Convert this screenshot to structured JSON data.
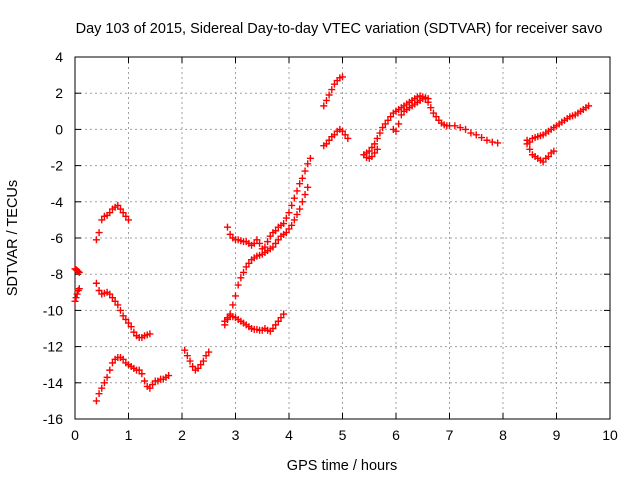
{
  "chart_data": {
    "type": "scatter",
    "title": "Day 103 of 2015, Sidereal Day-to-day VTEC variation (SDTVAR) for receiver savo",
    "xlabel": "GPS time / hours",
    "ylabel": "SDTVAR / TECUs",
    "xlim": [
      0,
      10
    ],
    "ylim": [
      -16,
      4
    ],
    "xticks": [
      "0",
      "1",
      "2",
      "3",
      "4",
      "5",
      "6",
      "7",
      "8",
      "9",
      "10"
    ],
    "yticks": [
      "-16",
      "-14",
      "-12",
      "-10",
      "-8",
      "-6",
      "-4",
      "-2",
      "0",
      "2",
      "4"
    ],
    "grid": true,
    "marker": "plus",
    "color": "#ff0000",
    "series": [
      {
        "x": [
          0.0,
          0.02,
          0.04,
          0.06,
          0.08
        ],
        "y": [
          -7.7,
          -7.75,
          -7.8,
          -7.85,
          -7.9
        ]
      },
      {
        "x": [
          0.0,
          0.02,
          0.04,
          0.06,
          0.08
        ],
        "y": [
          -9.5,
          -9.3,
          -9.1,
          -8.9,
          -8.8
        ]
      },
      {
        "x": [
          0.4,
          0.45,
          0.5,
          0.55,
          0.6,
          0.65,
          0.7,
          0.75,
          0.8,
          0.85,
          0.9,
          0.95,
          1.0
        ],
        "y": [
          -6.1,
          -5.7,
          -5.0,
          -4.8,
          -4.75,
          -4.6,
          -4.4,
          -4.3,
          -4.2,
          -4.4,
          -4.6,
          -4.8,
          -5.0
        ]
      },
      {
        "x": [
          0.4,
          0.45,
          0.5,
          0.55,
          0.6,
          0.65,
          0.7,
          0.75,
          0.8,
          0.85,
          0.9,
          0.95,
          1.0,
          1.05,
          1.1,
          1.15,
          1.2,
          1.25,
          1.3,
          1.35,
          1.4
        ],
        "y": [
          -8.5,
          -8.9,
          -9.1,
          -9.05,
          -9.0,
          -9.1,
          -9.3,
          -9.5,
          -9.7,
          -10.0,
          -10.3,
          -10.5,
          -10.7,
          -10.9,
          -11.2,
          -11.4,
          -11.5,
          -11.5,
          -11.4,
          -11.35,
          -11.3
        ]
      },
      {
        "x": [
          0.4,
          0.45,
          0.5,
          0.55,
          0.6,
          0.65,
          0.7,
          0.75,
          0.8,
          0.85,
          0.9,
          0.95,
          1.0,
          1.05,
          1.1,
          1.15,
          1.2,
          1.25,
          1.3,
          1.35,
          1.4,
          1.45,
          1.5,
          1.55,
          1.6,
          1.65,
          1.7,
          1.75
        ],
        "y": [
          -15.0,
          -14.6,
          -14.3,
          -14.0,
          -13.7,
          -13.3,
          -12.9,
          -12.7,
          -12.6,
          -12.6,
          -12.7,
          -12.9,
          -13.0,
          -13.1,
          -13.2,
          -13.3,
          -13.3,
          -13.5,
          -13.9,
          -14.2,
          -14.3,
          -14.1,
          -13.9,
          -13.9,
          -13.8,
          -13.8,
          -13.7,
          -13.6
        ]
      },
      {
        "x": [
          2.05,
          2.1,
          2.15,
          2.2,
          2.25,
          2.3,
          2.35,
          2.4,
          2.45,
          2.5
        ],
        "y": [
          -12.2,
          -12.5,
          -12.8,
          -13.1,
          -13.3,
          -13.2,
          -13.0,
          -12.8,
          -12.5,
          -12.3
        ]
      },
      {
        "x": [
          2.8,
          2.85,
          2.9,
          2.95,
          3.0,
          3.05,
          3.1,
          3.15,
          3.2,
          3.25,
          3.3,
          3.35,
          3.4,
          3.45,
          3.5,
          3.55,
          3.6,
          3.65,
          3.7,
          3.75,
          3.8,
          3.85,
          3.9
        ],
        "y": [
          -10.6,
          -10.4,
          -10.3,
          -10.35,
          -10.4,
          -10.5,
          -10.6,
          -10.7,
          -10.8,
          -10.9,
          -11.0,
          -11.05,
          -11.05,
          -11.1,
          -11.1,
          -11.0,
          -11.1,
          -11.15,
          -11.0,
          -10.8,
          -10.6,
          -10.4,
          -10.2
        ]
      },
      {
        "x": [
          2.8,
          2.85,
          2.9,
          2.95,
          3.0,
          3.05,
          3.1,
          3.15,
          3.2,
          3.25,
          3.3,
          3.35,
          3.4,
          3.45,
          3.5,
          3.55,
          3.6,
          3.65,
          3.7,
          3.75,
          3.8,
          3.85,
          3.9,
          3.95,
          4.0,
          4.05,
          4.1,
          4.15,
          4.2,
          4.25,
          4.3,
          4.35
        ],
        "y": [
          -10.8,
          -10.5,
          -10.2,
          -9.7,
          -9.2,
          -8.6,
          -8.2,
          -7.9,
          -7.6,
          -7.4,
          -7.2,
          -7.1,
          -7.0,
          -6.95,
          -6.9,
          -6.8,
          -6.7,
          -6.6,
          -6.5,
          -6.3,
          -6.1,
          -5.9,
          -5.8,
          -5.7,
          -5.5,
          -5.3,
          -5.0,
          -4.7,
          -4.4,
          -4.0,
          -3.6,
          -3.2
        ]
      },
      {
        "x": [
          2.85,
          2.9,
          2.95,
          3.0,
          3.05,
          3.1,
          3.15,
          3.2,
          3.25,
          3.3,
          3.35,
          3.4,
          3.45,
          3.5,
          3.55,
          3.6,
          3.65,
          3.7,
          3.75,
          3.8,
          3.85,
          3.9,
          3.95,
          4.0,
          4.05,
          4.1,
          4.15,
          4.2,
          4.25,
          4.3,
          4.35,
          4.4
        ],
        "y": [
          -5.4,
          -5.8,
          -6.0,
          -6.1,
          -6.1,
          -6.15,
          -6.2,
          -6.2,
          -6.3,
          -6.4,
          -6.3,
          -6.1,
          -6.3,
          -6.6,
          -6.5,
          -6.2,
          -5.9,
          -5.7,
          -5.6,
          -5.4,
          -5.3,
          -5.2,
          -4.9,
          -4.6,
          -4.2,
          -3.8,
          -3.4,
          -3.0,
          -2.7,
          -2.3,
          -1.9,
          -1.6
        ]
      },
      {
        "x": [
          4.65,
          4.7,
          4.75,
          4.8,
          4.85,
          4.9,
          4.95,
          5.0
        ],
        "y": [
          1.3,
          1.6,
          1.9,
          2.2,
          2.5,
          2.7,
          2.85,
          2.9
        ]
      },
      {
        "x": [
          4.65,
          4.7,
          4.75,
          4.8,
          4.85,
          4.9,
          4.95,
          5.0,
          5.05,
          5.1
        ],
        "y": [
          -0.9,
          -0.8,
          -0.6,
          -0.4,
          -0.3,
          -0.1,
          0.0,
          -0.1,
          -0.3,
          -0.5
        ]
      },
      {
        "x": [
          5.4,
          5.45,
          5.5,
          5.55,
          5.6,
          5.65,
          5.7,
          5.75,
          5.8,
          5.85,
          5.9,
          5.95,
          6.0,
          6.05,
          6.1,
          6.15,
          6.2,
          6.25,
          6.3,
          6.35,
          6.4,
          6.45,
          6.5,
          6.55,
          6.6,
          6.65,
          6.7,
          6.75,
          6.8,
          6.85,
          6.9,
          6.95,
          7.0,
          7.1,
          7.2,
          7.3,
          7.4,
          7.5,
          7.6,
          7.7,
          7.8,
          7.9
        ],
        "y": [
          -1.4,
          -1.3,
          -1.2,
          -1.0,
          -0.8,
          -0.5,
          -0.2,
          0.1,
          0.3,
          0.5,
          0.7,
          0.9,
          1.0,
          1.1,
          1.2,
          1.3,
          1.4,
          1.5,
          1.6,
          1.7,
          1.8,
          1.85,
          1.8,
          1.7,
          1.5,
          1.2,
          0.9,
          0.7,
          0.5,
          0.35,
          0.25,
          0.2,
          0.2,
          0.2,
          0.1,
          0.0,
          -0.2,
          -0.3,
          -0.45,
          -0.6,
          -0.7,
          -0.75
        ]
      },
      {
        "x": [
          5.4,
          5.45,
          5.5,
          5.55,
          5.6,
          5.65
        ],
        "y": [
          -1.4,
          -1.55,
          -1.6,
          -1.5,
          -1.3,
          -1.1
        ]
      },
      {
        "x": [
          5.95,
          6.0,
          6.05,
          6.1,
          6.15,
          6.2,
          6.25,
          6.3,
          6.35,
          6.4,
          6.45,
          6.5,
          6.55,
          6.6
        ],
        "y": [
          0.0,
          -0.1,
          0.3,
          0.8,
          1.0,
          1.1,
          1.2,
          1.3,
          1.4,
          1.5,
          1.6,
          1.7,
          1.75,
          1.7
        ]
      },
      {
        "x": [
          8.45,
          8.5,
          8.55,
          8.6,
          8.65,
          8.7,
          8.75,
          8.8,
          8.85,
          8.9,
          8.95,
          9.0,
          9.05,
          9.1,
          9.15,
          9.2,
          9.25,
          9.3,
          9.35,
          9.4,
          9.45,
          9.5,
          9.55,
          9.6
        ],
        "y": [
          -0.6,
          -0.7,
          -0.5,
          -0.45,
          -0.4,
          -0.35,
          -0.3,
          -0.2,
          -0.1,
          0.0,
          0.1,
          0.2,
          0.3,
          0.4,
          0.5,
          0.6,
          0.7,
          0.75,
          0.8,
          0.9,
          1.0,
          1.1,
          1.2,
          1.3
        ]
      },
      {
        "x": [
          8.45,
          8.5,
          8.55,
          8.6,
          8.65,
          8.7,
          8.75,
          8.8,
          8.85,
          8.9,
          8.95
        ],
        "y": [
          -0.8,
          -1.1,
          -1.4,
          -1.5,
          -1.6,
          -1.7,
          -1.8,
          -1.6,
          -1.5,
          -1.3,
          -1.2
        ]
      }
    ]
  }
}
